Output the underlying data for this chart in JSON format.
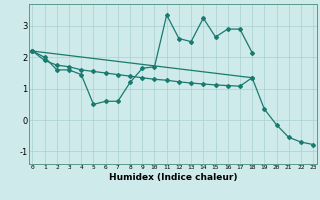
{
  "xlabel": "Humidex (Indice chaleur)",
  "x_values": [
    0,
    1,
    2,
    3,
    4,
    5,
    6,
    7,
    8,
    9,
    10,
    11,
    12,
    13,
    14,
    15,
    16,
    17,
    18,
    19,
    20,
    21,
    22,
    23
  ],
  "line1_x": [
    0,
    1,
    2,
    3,
    4,
    5,
    6,
    7,
    8,
    9,
    10,
    11,
    12,
    13,
    14,
    15,
    16,
    17,
    18
  ],
  "line1_y": [
    2.2,
    2.0,
    1.6,
    1.6,
    1.45,
    0.5,
    0.6,
    0.6,
    1.2,
    1.65,
    1.7,
    3.35,
    2.6,
    2.5,
    3.25,
    2.65,
    2.9,
    2.9,
    2.15
  ],
  "line2_x": [
    0,
    1,
    2,
    3,
    4,
    5,
    6,
    7,
    8,
    9,
    10,
    11,
    12,
    13,
    14,
    15,
    16,
    17,
    18
  ],
  "line2_y": [
    2.2,
    1.9,
    1.75,
    1.7,
    1.6,
    1.55,
    1.5,
    1.45,
    1.4,
    1.35,
    1.3,
    1.27,
    1.22,
    1.18,
    1.15,
    1.12,
    1.1,
    1.08,
    1.35
  ],
  "line3_x": [
    0,
    18,
    19,
    20,
    21,
    22,
    23
  ],
  "line3_y": [
    2.2,
    1.35,
    0.35,
    -0.15,
    -0.55,
    -0.7,
    -0.78
  ],
  "line_color": "#1a7a6e",
  "bg_color": "#ceeaea",
  "grid_color": "#aacfcf",
  "ylim": [
    -1.4,
    3.7
  ],
  "yticks": [
    -1,
    0,
    1,
    2,
    3
  ],
  "xlim": [
    -0.3,
    23.3
  ]
}
